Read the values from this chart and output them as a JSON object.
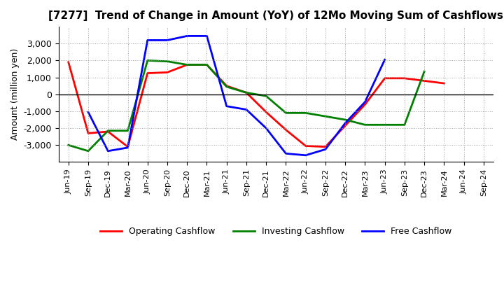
{
  "title": "[7277]  Trend of Change in Amount (YoY) of 12Mo Moving Sum of Cashflows",
  "ylabel": "Amount (million yen)",
  "x_labels": [
    "Jun-19",
    "Sep-19",
    "Dec-19",
    "Mar-20",
    "Jun-20",
    "Sep-20",
    "Dec-20",
    "Mar-21",
    "Jun-21",
    "Sep-21",
    "Dec-21",
    "Mar-22",
    "Jun-22",
    "Sep-22",
    "Dec-22",
    "Mar-23",
    "Jun-23",
    "Sep-23",
    "Dec-23",
    "Mar-24",
    "Jun-24",
    "Sep-24"
  ],
  "operating": [
    1900,
    -2300,
    -2200,
    -3100,
    1250,
    1300,
    1750,
    1750,
    500,
    100,
    -1050,
    -2100,
    -3050,
    -3100,
    -1850,
    -600,
    950,
    950,
    800,
    650,
    null,
    null
  ],
  "investing": [
    -3000,
    -3350,
    -2150,
    -2150,
    2000,
    1950,
    1750,
    1750,
    450,
    100,
    -100,
    -1100,
    -1100,
    -1300,
    -1500,
    -1800,
    -1800,
    -1800,
    1350,
    null,
    null,
    null
  ],
  "free": [
    null,
    -1050,
    -3350,
    -3150,
    3200,
    3200,
    3450,
    3450,
    -700,
    -900,
    -2000,
    -3500,
    -3600,
    -3250,
    -1700,
    -450,
    2050,
    null,
    null,
    null,
    null,
    null
  ],
  "operating_color": "#ff0000",
  "investing_color": "#008000",
  "free_color": "#0000ff",
  "background_color": "#ffffff",
  "grid_color": "#999999",
  "ylim": [
    -4000,
    4000
  ],
  "yticks": [
    -3000,
    -2000,
    -1000,
    0,
    1000,
    2000,
    3000
  ],
  "legend_labels": [
    "Operating Cashflow",
    "Investing Cashflow",
    "Free Cashflow"
  ]
}
